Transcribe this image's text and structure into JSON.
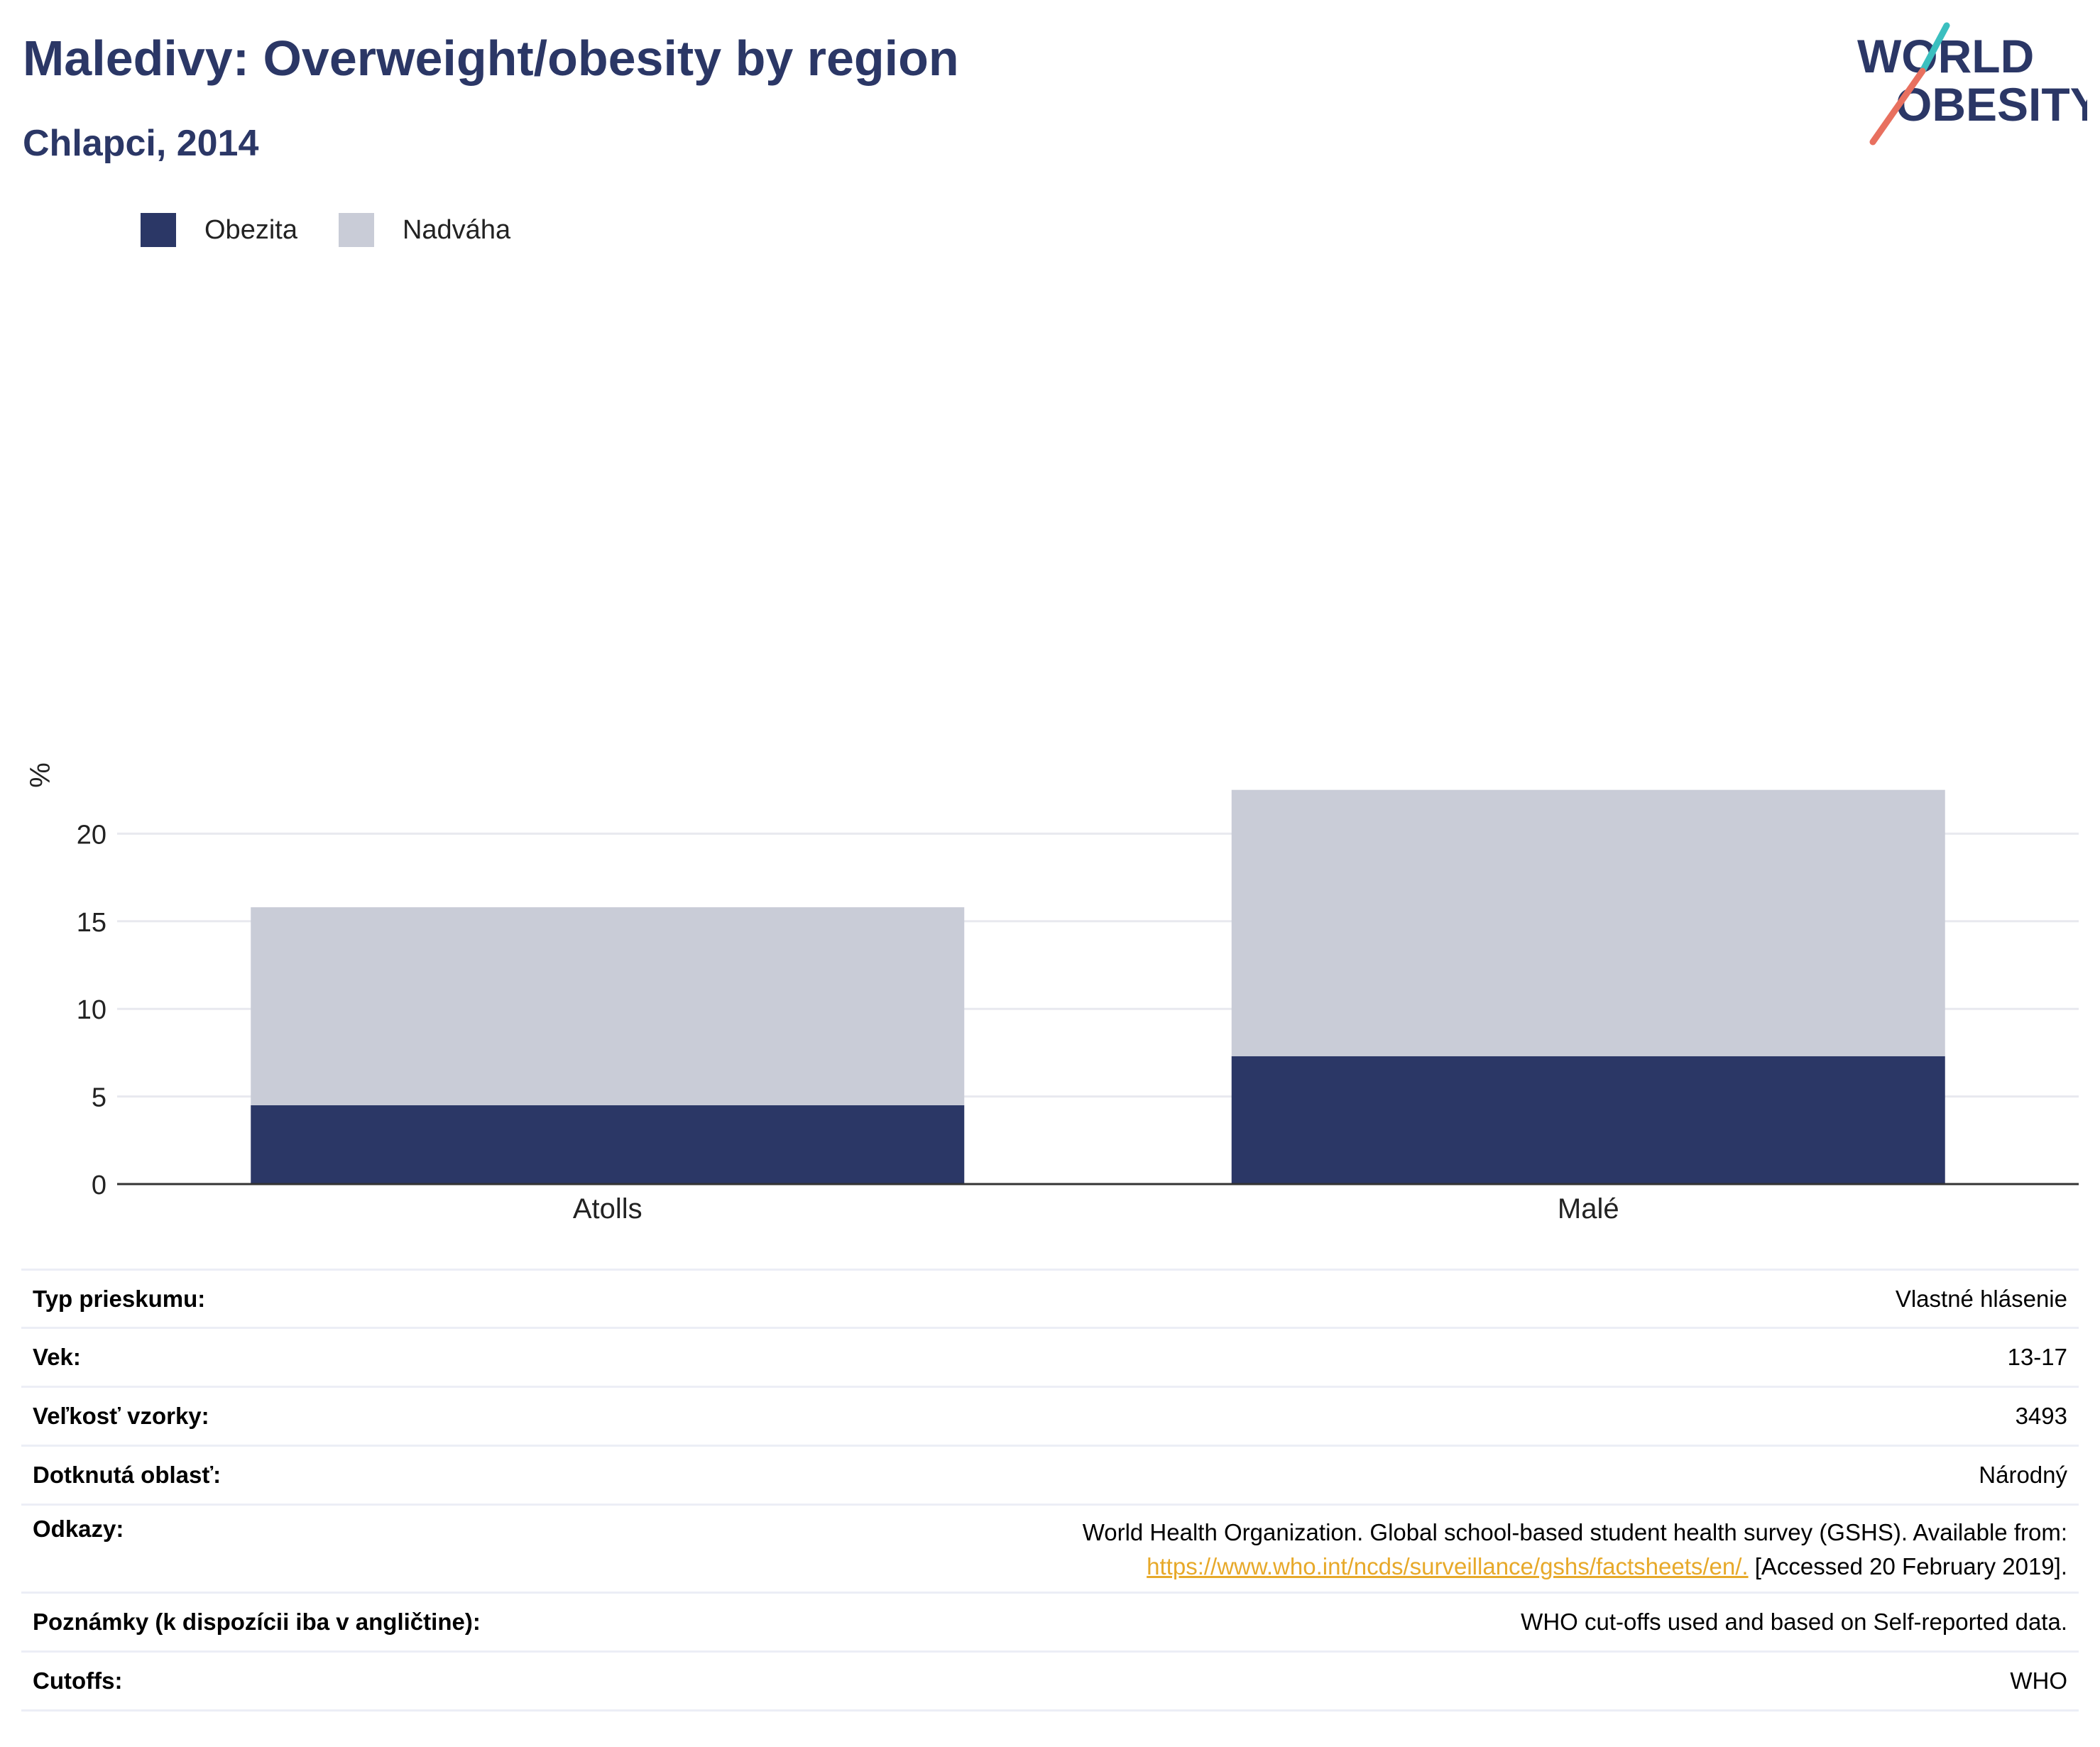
{
  "header": {
    "title": "Maledivy: Overweight/obesity by region",
    "subtitle": "Chlapci, 2014"
  },
  "logo": {
    "line1": "WORLD",
    "line2": "OBESITY",
    "colors": {
      "text": "#2b3766",
      "slash_top": "#3bbfbf",
      "slash_bottom": "#e8705f"
    }
  },
  "colors": {
    "obesity": "#2b3766",
    "overweight": "#c9ccd7",
    "grid": "#e8e9ef",
    "axis": "#333333",
    "link": "#e7a92a"
  },
  "chart_data": {
    "type": "bar",
    "stacked": true,
    "categories": [
      "Atolls",
      "Malé"
    ],
    "series": [
      {
        "name": "Obezita",
        "values": [
          4.5,
          7.3
        ]
      },
      {
        "name": "Nadváha",
        "values": [
          11.3,
          15.2
        ]
      }
    ],
    "totals": [
      15.8,
      22.5
    ],
    "ylabel": "%",
    "xlabel": "",
    "ylim": [
      0,
      25
    ],
    "yticks": [
      0,
      5,
      10,
      15,
      20
    ],
    "grid": true,
    "legend_position": "top-left"
  },
  "info": {
    "rows": [
      {
        "label": "Typ prieskumu:",
        "value": "Vlastné hlásenie"
      },
      {
        "label": "Vek:",
        "value": "13-17"
      },
      {
        "label": "Veľkosť vzorky:",
        "value": "3493"
      },
      {
        "label": "Dotknutá oblasť:",
        "value": "Národný"
      },
      {
        "label": "Odkazy:",
        "value_line1": "World Health Organization. Global school-based student health survey (GSHS). Available from:",
        "link": "https://www.who.int/ncds/surveillance/gshs/factsheets/en/.",
        "value_after_link": "[Accessed 20 February 2019]."
      },
      {
        "label": "Poznámky (k dispozícii iba v angličtine):",
        "value": "WHO cut-offs used and based on Self-reported data."
      },
      {
        "label": "Cutoffs:",
        "value": "WHO"
      }
    ]
  }
}
